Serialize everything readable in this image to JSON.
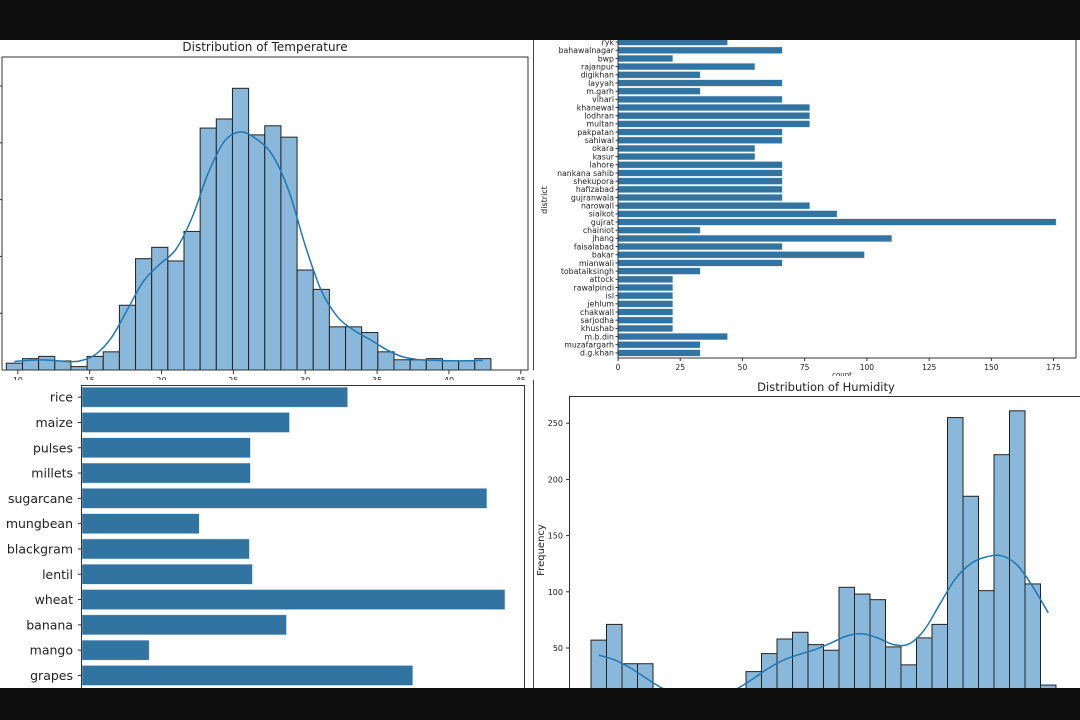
{
  "chart_data": [
    {
      "id": "temperature",
      "type": "bar",
      "subtype": "histogram_with_kde",
      "title": "Distribution of Temperature",
      "xlabel": "",
      "ylabel": "",
      "xticks": [
        10,
        15,
        20,
        25,
        30,
        35,
        40,
        45
      ],
      "xlim": [
        8.9,
        45.5
      ],
      "bin_start": 9.2,
      "bin_width": 1.124,
      "values": [
        6,
        10,
        12,
        8,
        3,
        12,
        16,
        57,
        98,
        108,
        96,
        122,
        213,
        221,
        248,
        207,
        215,
        205,
        88,
        71,
        38,
        38,
        33,
        16,
        9,
        9,
        10,
        8,
        8,
        10
      ],
      "ylim": [
        0,
        265
      ],
      "grid": false,
      "colors": {
        "bar": "#8ab8da",
        "edge": "#222222",
        "kde": "#1f77b4"
      }
    },
    {
      "id": "district",
      "type": "bar",
      "orientation": "horizontal",
      "title": "",
      "ylabel": "district",
      "xlabel": "count",
      "xticks": [
        0,
        25,
        50,
        75,
        100,
        125,
        150,
        175
      ],
      "xlim": [
        0,
        184
      ],
      "categories": [
        "ryk",
        "bahawalnagar",
        "bwp",
        "rajanpur",
        "digikhan",
        "layyah",
        "m.garh",
        "vihari",
        "khanewal",
        "lodhran",
        "multan",
        "pakpatan",
        "sahiwal",
        "okara",
        "kasur",
        "lahore",
        "nankana sahib",
        "shekupora",
        "hafizabad",
        "gujranwala",
        "narowall",
        "sialkot",
        "gujrat",
        "chainiot",
        "jhang",
        "faisalabad",
        "bakar",
        "mianwali",
        "tobataiksingh",
        "attock",
        "rawalpindi",
        "isl",
        "jehlum",
        "chakwall",
        "sarjodha",
        "khushab",
        "m.b.din",
        "muzafargarh",
        "d.g.khan"
      ],
      "values": [
        44,
        66,
        22,
        55,
        33,
        66,
        33,
        66,
        77,
        77,
        77,
        66,
        66,
        55,
        55,
        66,
        66,
        66,
        66,
        66,
        77,
        88,
        176,
        33,
        110,
        66,
        99,
        66,
        33,
        22,
        22,
        22,
        22,
        22,
        22,
        22,
        44,
        33,
        33
      ],
      "grid": false,
      "colors": {
        "bar": "#3274a1"
      }
    },
    {
      "id": "crop",
      "type": "bar",
      "orientation": "horizontal",
      "title": "",
      "categories": [
        "rice",
        "maize",
        "pulses",
        "millets",
        "sugarcane",
        "mungbean",
        "blackgram",
        "lentil",
        "wheat",
        "banana",
        "mango",
        "grapes"
      ],
      "values": [
        265,
        207,
        168,
        168,
        404,
        117,
        167,
        170,
        422,
        204,
        67,
        330
      ],
      "value_units": "relative (no axis visible)",
      "xlim": [
        0,
        441
      ],
      "grid": false,
      "colors": {
        "bar": "#3274a1"
      }
    },
    {
      "id": "humidity",
      "type": "bar",
      "subtype": "histogram_with_kde",
      "title": "Distribution of Humidity",
      "ylabel": "Frequency",
      "yticks": [
        50,
        100,
        150,
        200,
        250
      ],
      "ylim": [
        0,
        274
      ],
      "values": [
        57,
        71,
        36,
        36,
        0,
        0,
        0,
        0,
        0,
        0,
        29,
        45,
        58,
        64,
        53,
        48,
        104,
        98,
        93,
        51,
        35,
        59,
        71,
        255,
        185,
        101,
        222,
        261,
        107,
        17
      ],
      "grid": false,
      "colors": {
        "bar": "#8ab8da",
        "edge": "#222222",
        "kde": "#1f77b4"
      }
    }
  ]
}
